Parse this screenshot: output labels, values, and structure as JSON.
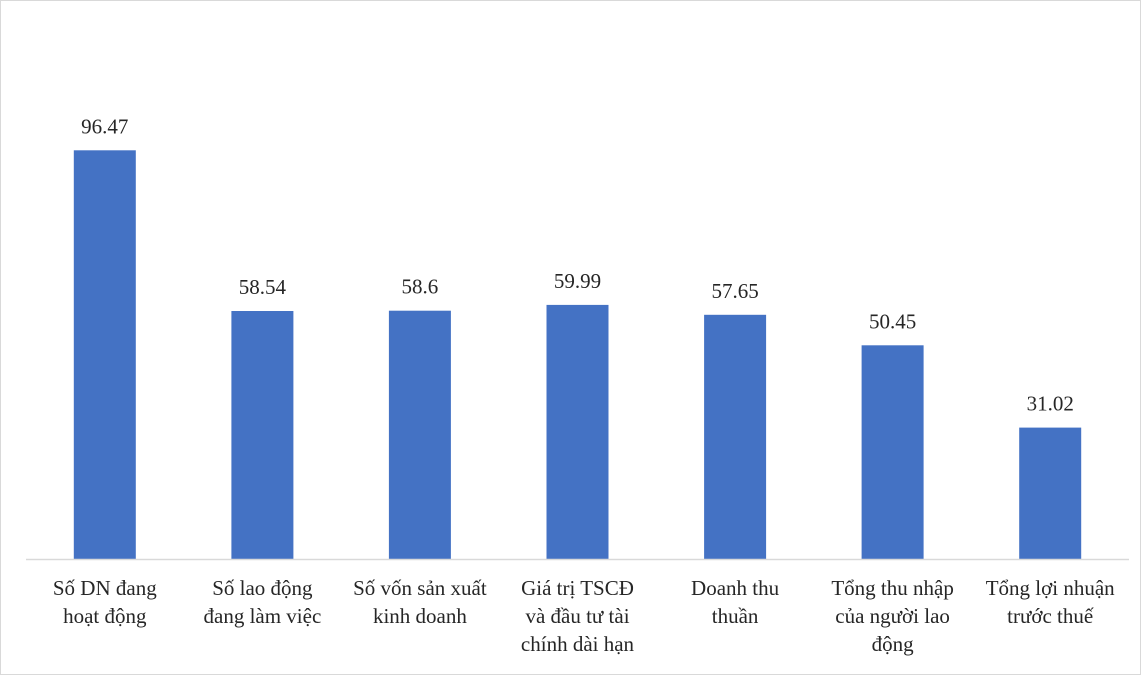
{
  "chart_data": {
    "type": "bar",
    "categories": [
      [
        "Số DN đang",
        "hoạt động"
      ],
      [
        "Số lao động",
        "đang làm việc"
      ],
      [
        "Số vốn sản xuất",
        "kinh doanh"
      ],
      [
        "Giá trị TSCĐ",
        "và đầu tư tài",
        "chính dài hạn"
      ],
      [
        "Doanh thu",
        "thuần"
      ],
      [
        "Tổng thu nhập",
        "của người lao",
        "động"
      ],
      [
        "Tổng lợi nhuận",
        "trước thuế"
      ]
    ],
    "values": [
      96.47,
      58.54,
      58.6,
      59.99,
      57.65,
      50.45,
      31.02
    ],
    "value_labels": [
      "96.47",
      "58.54",
      "58.6",
      "59.99",
      "57.65",
      "50.45",
      "31.02"
    ],
    "ylim": [
      0,
      110
    ],
    "title": "",
    "xlabel": "",
    "ylabel": "",
    "grid": false,
    "legend": "none",
    "colors": {
      "bar": "#4472C4",
      "axis": "#d9d9d9",
      "text": "#262626"
    }
  }
}
